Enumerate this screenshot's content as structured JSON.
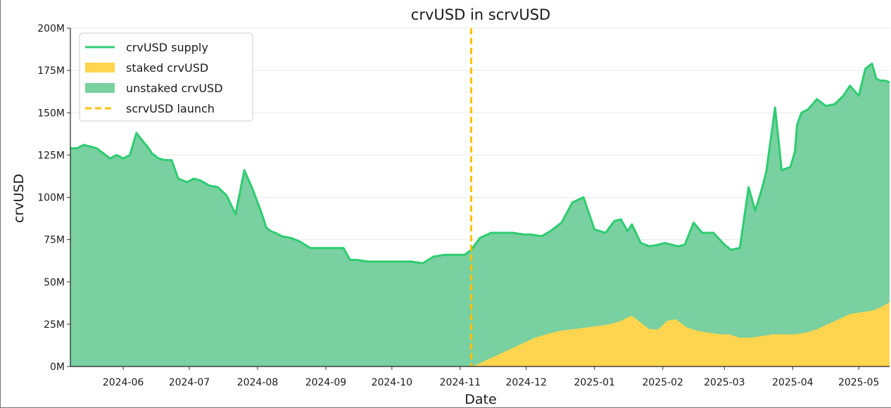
{
  "chart_data": {
    "type": "area",
    "title": "crvUSD in scrvUSD",
    "xlabel": "Date",
    "ylabel": "crvUSD",
    "xlim": [
      "2024-05-08",
      "2025-05-15"
    ],
    "ylim": [
      0,
      200
    ],
    "y_unit_suffix": "M",
    "grid": "y",
    "legend": "top-left",
    "x_ticks": [
      "2024-06",
      "2024-07",
      "2024-08",
      "2024-09",
      "2024-10",
      "2024-11",
      "2024-12",
      "2025-01",
      "2025-02",
      "2025-03",
      "2025-04",
      "2025-05"
    ],
    "y_ticks": [
      "0M",
      "25M",
      "50M",
      "75M",
      "100M",
      "125M",
      "150M",
      "175M",
      "200M"
    ],
    "colors": {
      "supply_line": "#2ecc71",
      "staked": "#ffd54f",
      "unstaked": "#79d0a0",
      "launch": "#ffc107"
    },
    "series": [
      {
        "name": "crvUSD supply",
        "kind": "line",
        "x": [
          "2024-05-08",
          "2024-05-11",
          "2024-05-14",
          "2024-05-17",
          "2024-05-20",
          "2024-05-23",
          "2024-05-26",
          "2024-05-29",
          "2024-06-01",
          "2024-06-04",
          "2024-06-07",
          "2024-06-10",
          "2024-06-12",
          "2024-06-14",
          "2024-06-17",
          "2024-06-20",
          "2024-06-23",
          "2024-06-26",
          "2024-06-30",
          "2024-07-03",
          "2024-07-06",
          "2024-07-10",
          "2024-07-14",
          "2024-07-18",
          "2024-07-22",
          "2024-07-26",
          "2024-07-30",
          "2024-08-01",
          "2024-08-03",
          "2024-08-05",
          "2024-08-07",
          "2024-08-09",
          "2024-08-12",
          "2024-08-16",
          "2024-08-20",
          "2024-08-25",
          "2024-08-30",
          "2024-09-04",
          "2024-09-09",
          "2024-09-12",
          "2024-09-15",
          "2024-09-20",
          "2024-09-25",
          "2024-10-01",
          "2024-10-05",
          "2024-10-10",
          "2024-10-15",
          "2024-10-20",
          "2024-10-25",
          "2024-10-30",
          "2024-11-03",
          "2024-11-06",
          "2024-11-10",
          "2024-11-15",
          "2024-11-20",
          "2024-11-25",
          "2024-11-30",
          "2024-12-03",
          "2024-12-08",
          "2024-12-12",
          "2024-12-17",
          "2024-12-22",
          "2024-12-27",
          "2025-01-01",
          "2025-01-06",
          "2025-01-10",
          "2025-01-13",
          "2025-01-16",
          "2025-01-18",
          "2025-01-22",
          "2025-01-26",
          "2025-01-30",
          "2025-02-02",
          "2025-02-05",
          "2025-02-08",
          "2025-02-11",
          "2025-02-15",
          "2025-02-19",
          "2025-02-24",
          "2025-03-01",
          "2025-03-04",
          "2025-03-08",
          "2025-03-12",
          "2025-03-15",
          "2025-03-18",
          "2025-03-20",
          "2025-03-24",
          "2025-03-27",
          "2025-03-31",
          "2025-04-02",
          "2025-04-03",
          "2025-04-05",
          "2025-04-08",
          "2025-04-12",
          "2025-04-16",
          "2025-04-20",
          "2025-04-24",
          "2025-04-27",
          "2025-05-01",
          "2025-05-04",
          "2025-05-07",
          "2025-05-09",
          "2025-05-11",
          "2025-05-13",
          "2025-05-15"
        ],
        "y": [
          129,
          129,
          131,
          130,
          129,
          126,
          123,
          125,
          123,
          125,
          138,
          133,
          130,
          126,
          123,
          122,
          122,
          111,
          109,
          111,
          110,
          107,
          106,
          101,
          90,
          116,
          104,
          97,
          90,
          82,
          80,
          79,
          77,
          76,
          74,
          70,
          70,
          70,
          70,
          63,
          63,
          62,
          62,
          62,
          62,
          62,
          61,
          65,
          66,
          66,
          66,
          69,
          76,
          79,
          79,
          79,
          78,
          78,
          77,
          80,
          85,
          97,
          100,
          81,
          79,
          86,
          87,
          80,
          84,
          73,
          71,
          72,
          73,
          72,
          71,
          72,
          85,
          79,
          79,
          72,
          69,
          70,
          106,
          92,
          105,
          115,
          153,
          116,
          118,
          127,
          143,
          150,
          152,
          158,
          154,
          155,
          160,
          166,
          160,
          176,
          179,
          170,
          169,
          169,
          168
        ]
      },
      {
        "name": "staked crvUSD",
        "kind": "area",
        "x": [
          "2024-11-06",
          "2024-11-10",
          "2024-11-15",
          "2024-11-20",
          "2024-11-25",
          "2024-11-30",
          "2024-12-05",
          "2024-12-10",
          "2024-12-16",
          "2024-12-22",
          "2024-12-28",
          "2025-01-03",
          "2025-01-08",
          "2025-01-13",
          "2025-01-16",
          "2025-01-18",
          "2025-01-22",
          "2025-01-26",
          "2025-01-30",
          "2025-02-03",
          "2025-02-07",
          "2025-02-12",
          "2025-02-17",
          "2025-02-22",
          "2025-02-27",
          "2025-03-03",
          "2025-03-08",
          "2025-03-13",
          "2025-03-18",
          "2025-03-23",
          "2025-03-28",
          "2025-04-02",
          "2025-04-07",
          "2025-04-12",
          "2025-04-17",
          "2025-04-22",
          "2025-04-27",
          "2025-05-02",
          "2025-05-07",
          "2025-05-11",
          "2025-05-15"
        ],
        "y": [
          0,
          2,
          5,
          8,
          11,
          14,
          17,
          19,
          21,
          22,
          23,
          24,
          25,
          27,
          29,
          30,
          26,
          22,
          22,
          27,
          28,
          23,
          21,
          20,
          19,
          19,
          17,
          17,
          18,
          19,
          19,
          19,
          20,
          22,
          25,
          28,
          31,
          32,
          33,
          35,
          38
        ]
      },
      {
        "name": "unstaked crvUSD",
        "kind": "area"
      },
      {
        "name": "scrvUSD launch",
        "kind": "vline",
        "x": "2024-11-06"
      }
    ]
  }
}
